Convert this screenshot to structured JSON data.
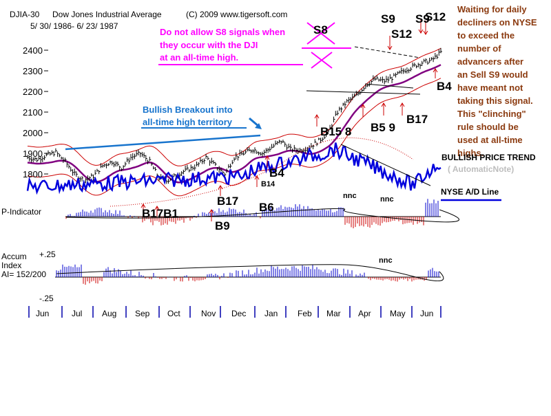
{
  "header": {
    "ticker": "DJIA-30",
    "name": "Dow Jones Industrial Average",
    "copyright": "(C) 2009 www.tigersoft.com",
    "date_range": "5/ 30/ 1986- 6/ 23/ 1987"
  },
  "annotations": {
    "s8_note": [
      "Do not allow S8 signals when",
      "they occur with the DJI",
      "at an all-time high."
    ],
    "breakout_note": [
      "Bullish Breakout into",
      "all-time high territory"
    ],
    "right_note": [
      "Waiting for daily",
      "decliners on NYSE",
      "to exceed the",
      "number of",
      "advancers after",
      "an Sell S9 would",
      "have meant not",
      "taking this signal.",
      "This \"clinching\"",
      "rule should be",
      "used at all-time",
      "highs."
    ],
    "bullish_trend": "BULLISH PRICE TREND",
    "automatic_note": "( AutomaticNote)"
  },
  "panels": {
    "ad_line": "NYSE A/D Line",
    "p_indicator": "P-Indicator",
    "accum_title": "Accum",
    "accum_sub": "Index",
    "accum_ai": "AI= 152/200",
    "accum_top": "+.25",
    "accum_bot": "-.25"
  },
  "signals": {
    "s8": "S8",
    "s9": "S9",
    "s12_a": "S12",
    "s9_b": "S9",
    "s12_b": "S12",
    "b4_right": "B4",
    "b17_right": "B17",
    "b4": "B4",
    "b14": "B14",
    "b17": "B17",
    "b6": "B6",
    "b9": "B9",
    "b17b1": "B17B1",
    "b15_8": "B15 8",
    "b_mar": "B",
    "b5_9": "B5 9",
    "nnc1": "nnc",
    "nnc2": "nnc",
    "nnc3": "nnc"
  },
  "colors": {
    "magenta": "#ff00ff",
    "blue_annot": "#1874cd",
    "brown_annot": "#8b3a0f",
    "price_bars": "#000000",
    "bands": "#cc0000",
    "ma": "#800080",
    "ad_line": "#0000dd",
    "pos_hist": "#0000cc",
    "neg_hist": "#cc0000"
  },
  "chart_data": {
    "type": "line",
    "title": "Dow Jones Industrial Average",
    "x_months": [
      "Jun",
      "Jul",
      "Aug",
      "Sep",
      "Oct",
      "Nov",
      "Dec",
      "Jan",
      "Feb",
      "Mar",
      "Apr",
      "May",
      "Jun"
    ],
    "ylim": [
      1700,
      2450
    ],
    "yticks": [
      1800,
      1900,
      2000,
      2100,
      2200,
      2300,
      2400
    ],
    "series": [
      {
        "kind": "price",
        "x": [
          0,
          6,
          12,
          18,
          24,
          30,
          36,
          42,
          48,
          54,
          60,
          66,
          72,
          78,
          84,
          90,
          96,
          102,
          108,
          114,
          120,
          126,
          132,
          138,
          144,
          150,
          156,
          162,
          168,
          174,
          180,
          186,
          192,
          198,
          204,
          210,
          216,
          222,
          228,
          234,
          240,
          246,
          252,
          258,
          264
        ],
        "values": [
          1880,
          1870,
          1890,
          1905,
          1860,
          1800,
          1770,
          1790,
          1840,
          1860,
          1830,
          1880,
          1900,
          1860,
          1780,
          1770,
          1800,
          1820,
          1840,
          1880,
          1840,
          1800,
          1880,
          1900,
          1920,
          1900,
          1930,
          1960,
          1920,
          1915,
          1930,
          1960,
          2000,
          2100,
          2150,
          2180,
          2230,
          2260,
          2250,
          2270,
          2300,
          2320,
          2340,
          2350,
          2390
        ]
      }
    ]
  }
}
